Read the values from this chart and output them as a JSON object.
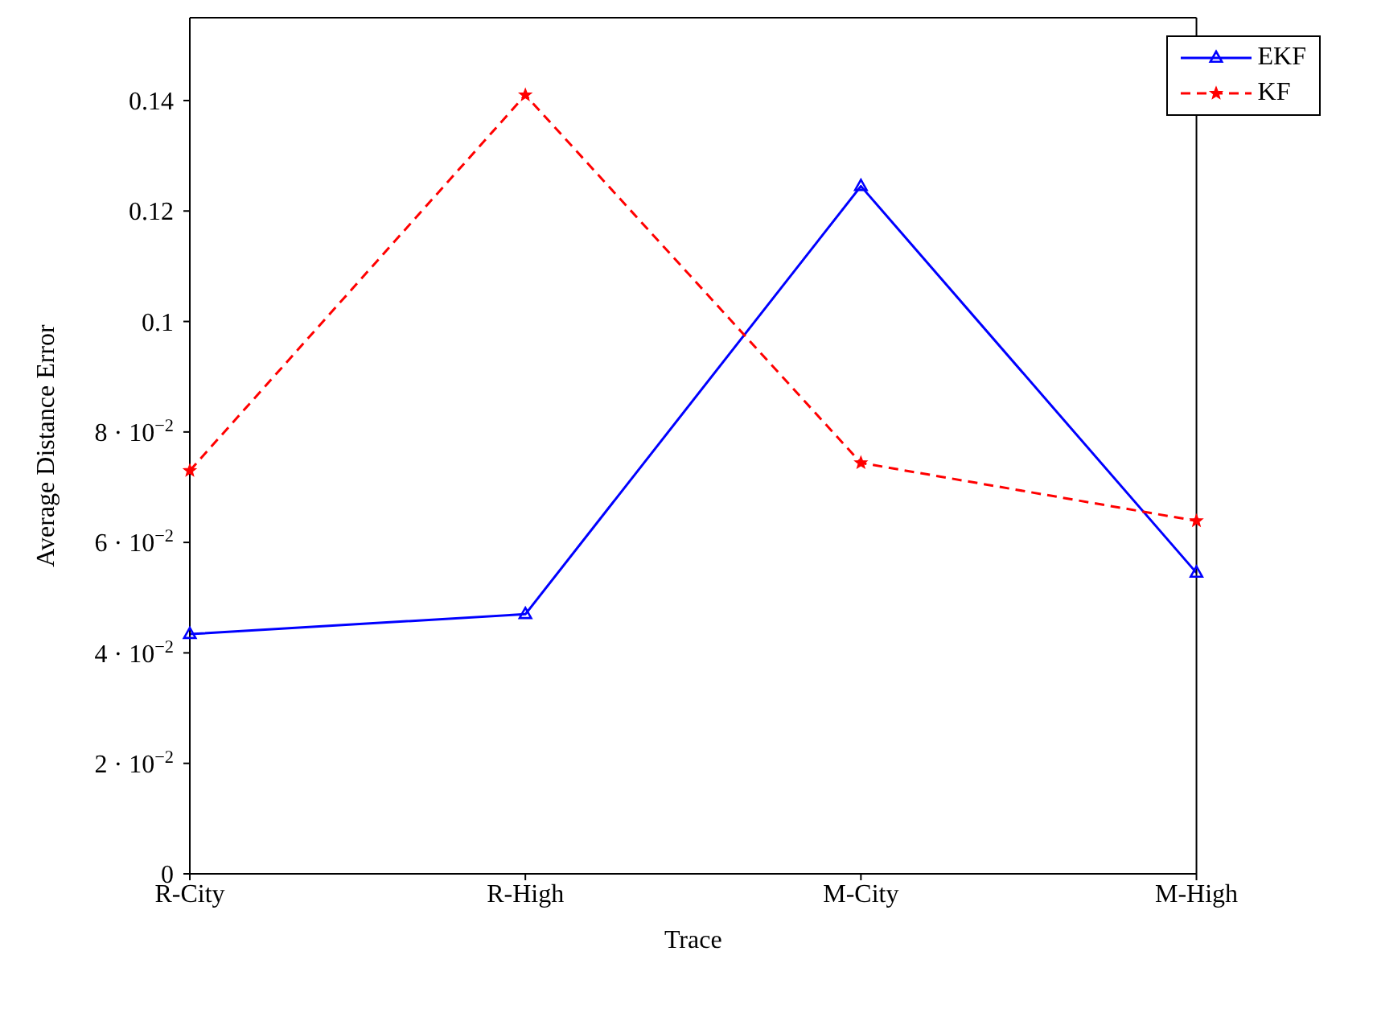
{
  "chart_data": {
    "type": "line",
    "xlabel": "Trace",
    "ylabel": "Average Distance Error",
    "categories": [
      "R-City",
      "R-High",
      "M-City",
      "M-High"
    ],
    "series": [
      {
        "name": "EKF",
        "color": "#0000ff",
        "values": [
          0.0434,
          0.047,
          0.1245,
          0.0545
        ],
        "marker": "triangle",
        "line_style": "solid"
      },
      {
        "name": "KF",
        "color": "#ff0000",
        "values": [
          0.073,
          0.141,
          0.0744,
          0.0639
        ],
        "marker": "star",
        "line_style": "dashed"
      }
    ],
    "ylim": [
      0,
      0.155
    ],
    "yticks": [
      0,
      {
        "value": 0.02,
        "label": "2 · 10$^{−2}$"
      },
      {
        "value": 0.04,
        "label": "4 · 10$^{−2}$"
      },
      {
        "value": 0.06,
        "label": "6 · 10$^{−2}$"
      },
      {
        "value": 0.08,
        "label": "8 · 10$^{−2}$"
      },
      0.1,
      0.12,
      0.14
    ],
    "grid": false,
    "legend": "top right"
  }
}
